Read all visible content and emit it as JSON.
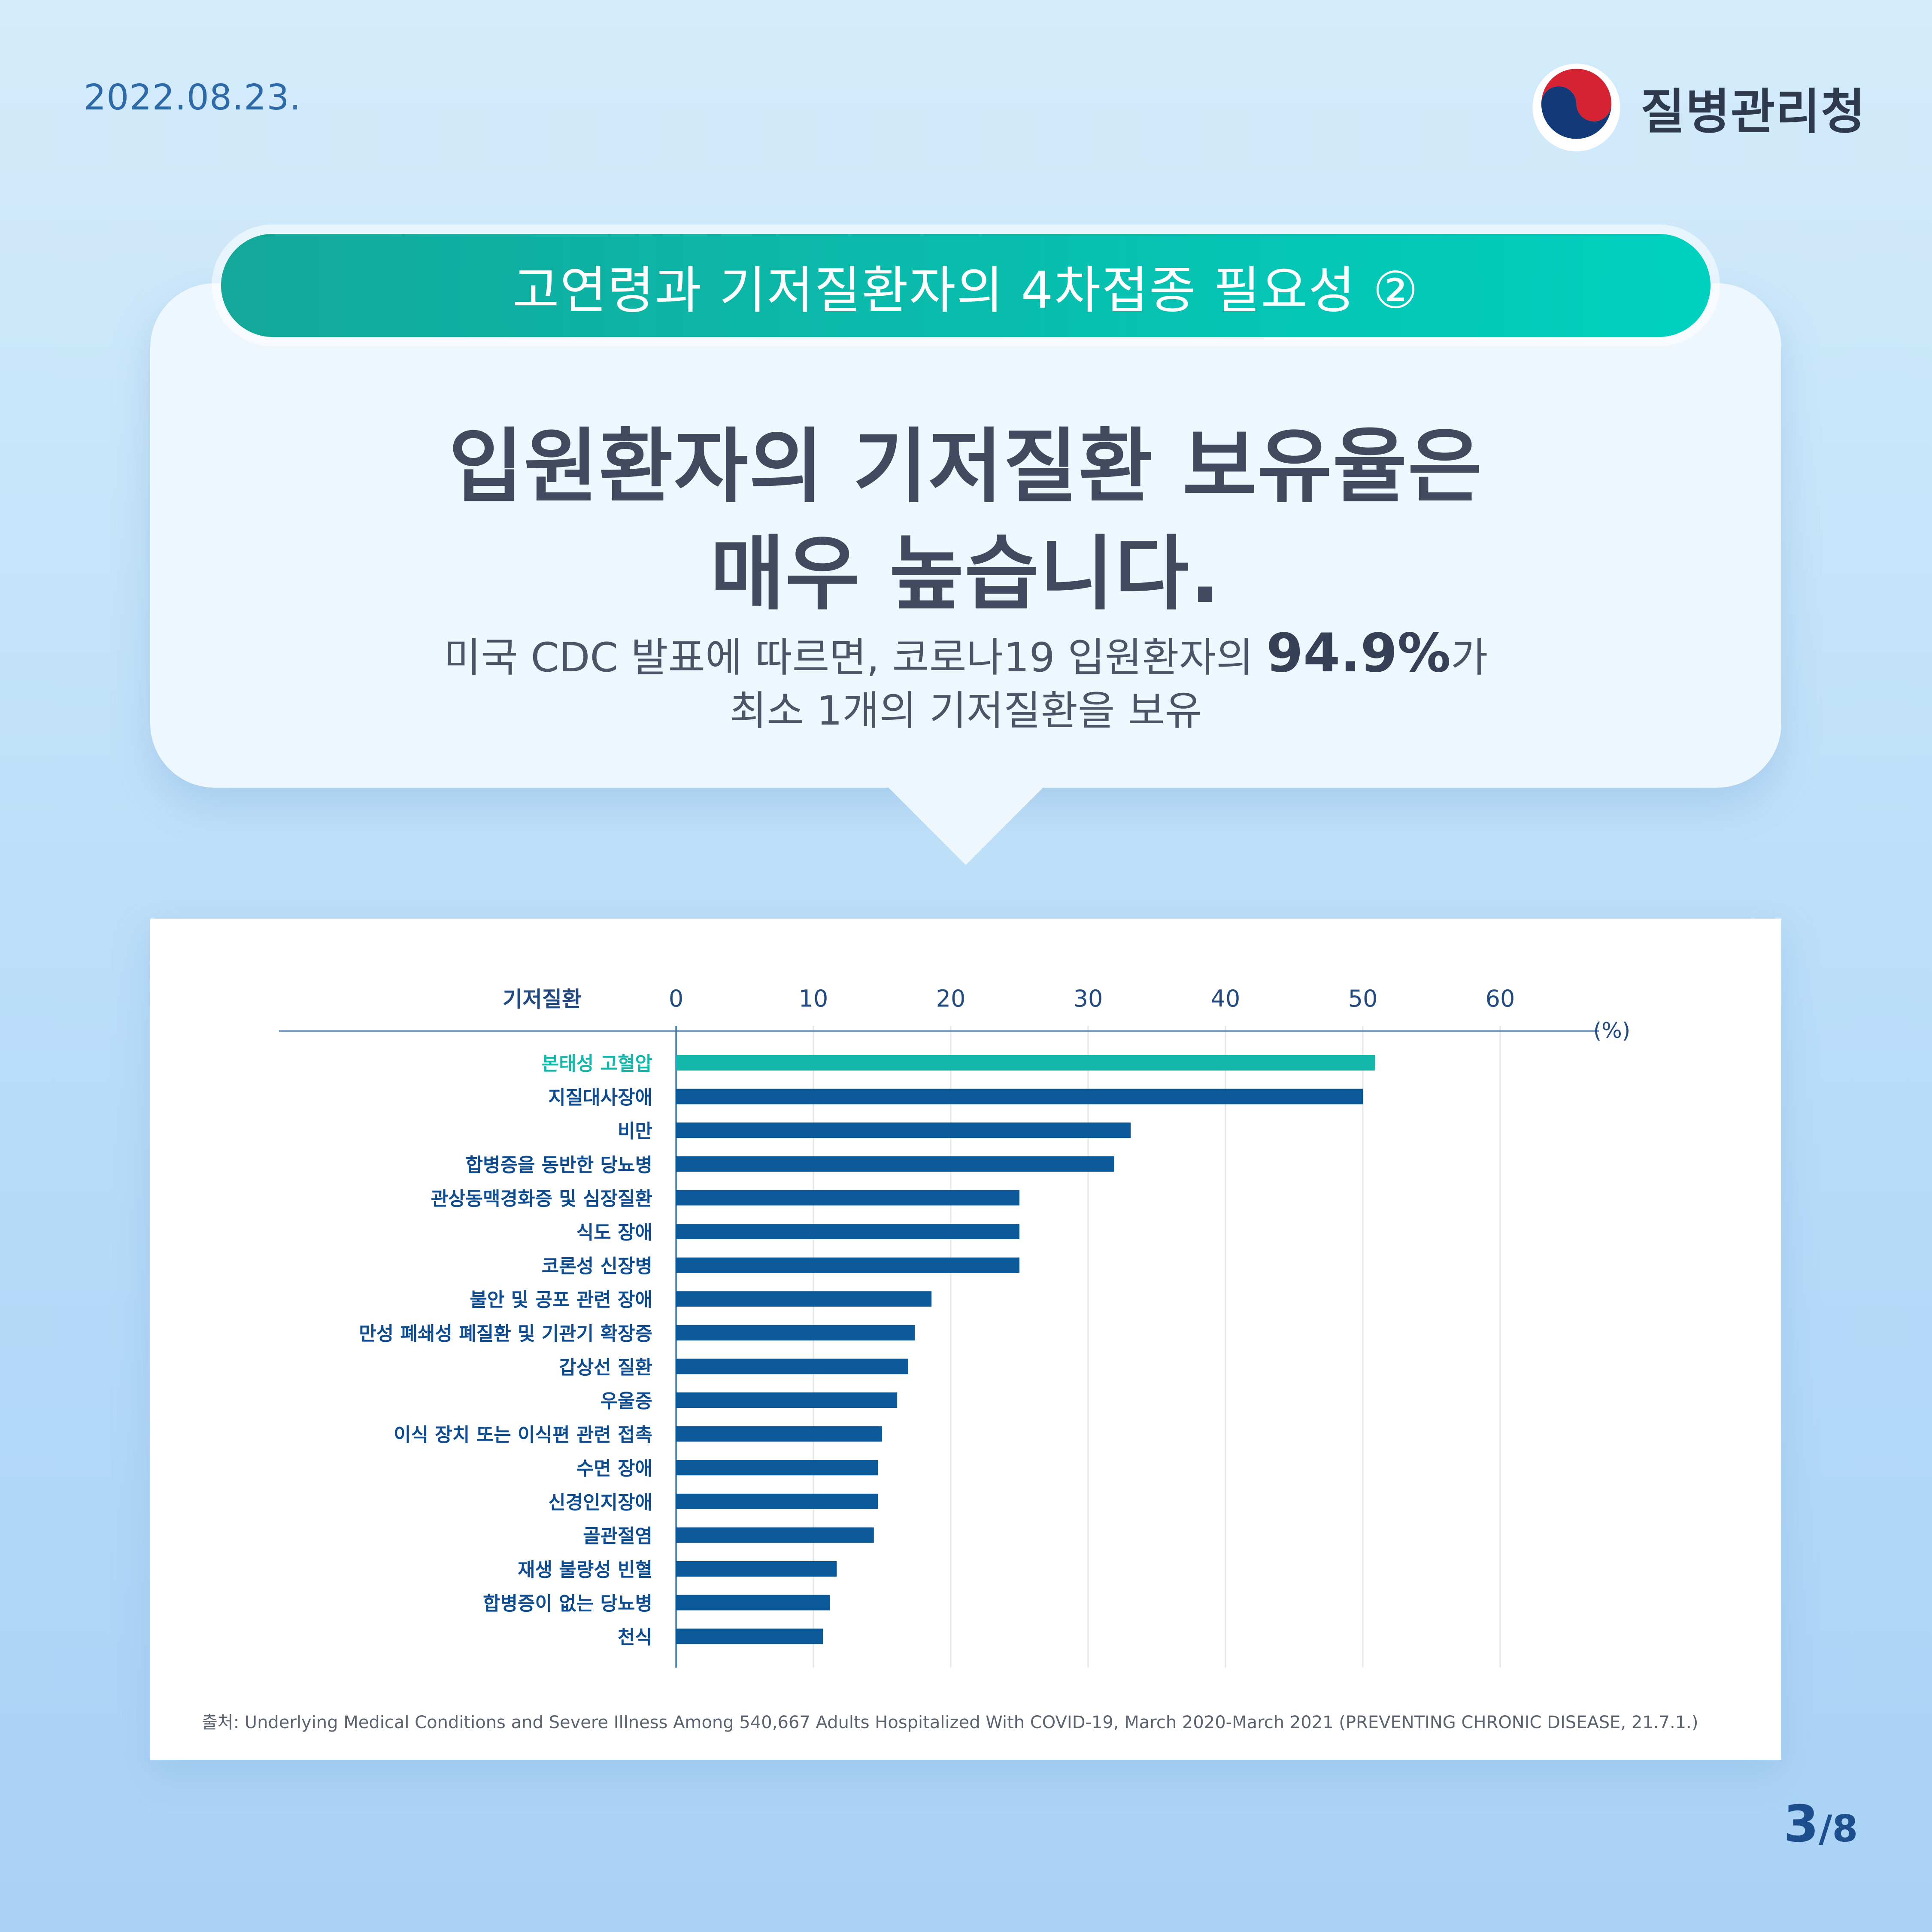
{
  "date": "2022.08.23.",
  "org_name": "질병관리청",
  "banner": "고연령과 기저질환자의 4차접종 필요성 ②",
  "headline": [
    "입원환자의 기저질환 보유율은",
    "매우 높습니다."
  ],
  "sub_line1_prefix": "미국 CDC 발표에 따르면, 코로나19 입원환자의 ",
  "sub_line1_value": "94.9%",
  "sub_line1_suffix": "가",
  "sub_line2": "최소 1개의 기저질환을 보유",
  "page_current": "3",
  "page_total": "/8",
  "colors": {
    "highlight": "#14b8ab",
    "bar": "#0d5a9a",
    "label": "#0e4b8f",
    "header": "#234a80"
  },
  "chart_data": {
    "type": "bar",
    "orientation": "horizontal",
    "category_header": "기저질환",
    "unit_label": "(%)",
    "xlim": [
      0,
      70
    ],
    "ticks": [
      "0",
      "10",
      "20",
      "30",
      "40",
      "50",
      "60"
    ],
    "tick_values": [
      0,
      10,
      20,
      30,
      40,
      50,
      60
    ],
    "grid": true,
    "highlight_index": 0,
    "categories": [
      "본태성 고혈압",
      "지질대사장애",
      "비만",
      "합병증을 동반한 당뇨병",
      "관상동맥경화증 및 심장질환",
      "식도 장애",
      "코론성 신장병",
      "불안 및 공포 관련 장애",
      "만성 폐쇄성 폐질환 및 기관기 확장증",
      "갑상선 질환",
      "우울증",
      "이식 장치 또는 이식편 관련 접촉",
      "수면 장애",
      "신경인지장애",
      "골관절염",
      "재생 불량성 빈혈",
      "합병증이 없는 당뇨병",
      "천식"
    ],
    "values": [
      50.9,
      50.0,
      33.1,
      31.9,
      25.0,
      25.0,
      25.0,
      18.6,
      17.4,
      16.9,
      16.1,
      15.0,
      14.7,
      14.7,
      14.4,
      11.7,
      11.2,
      10.7
    ],
    "source": "출처: Underlying Medical Conditions and Severe Illness Among 540,667 Adults Hospitalized With COVID-19, March 2020-March 2021 (PREVENTING CHRONIC DISEASE, 21.7.1.)"
  }
}
